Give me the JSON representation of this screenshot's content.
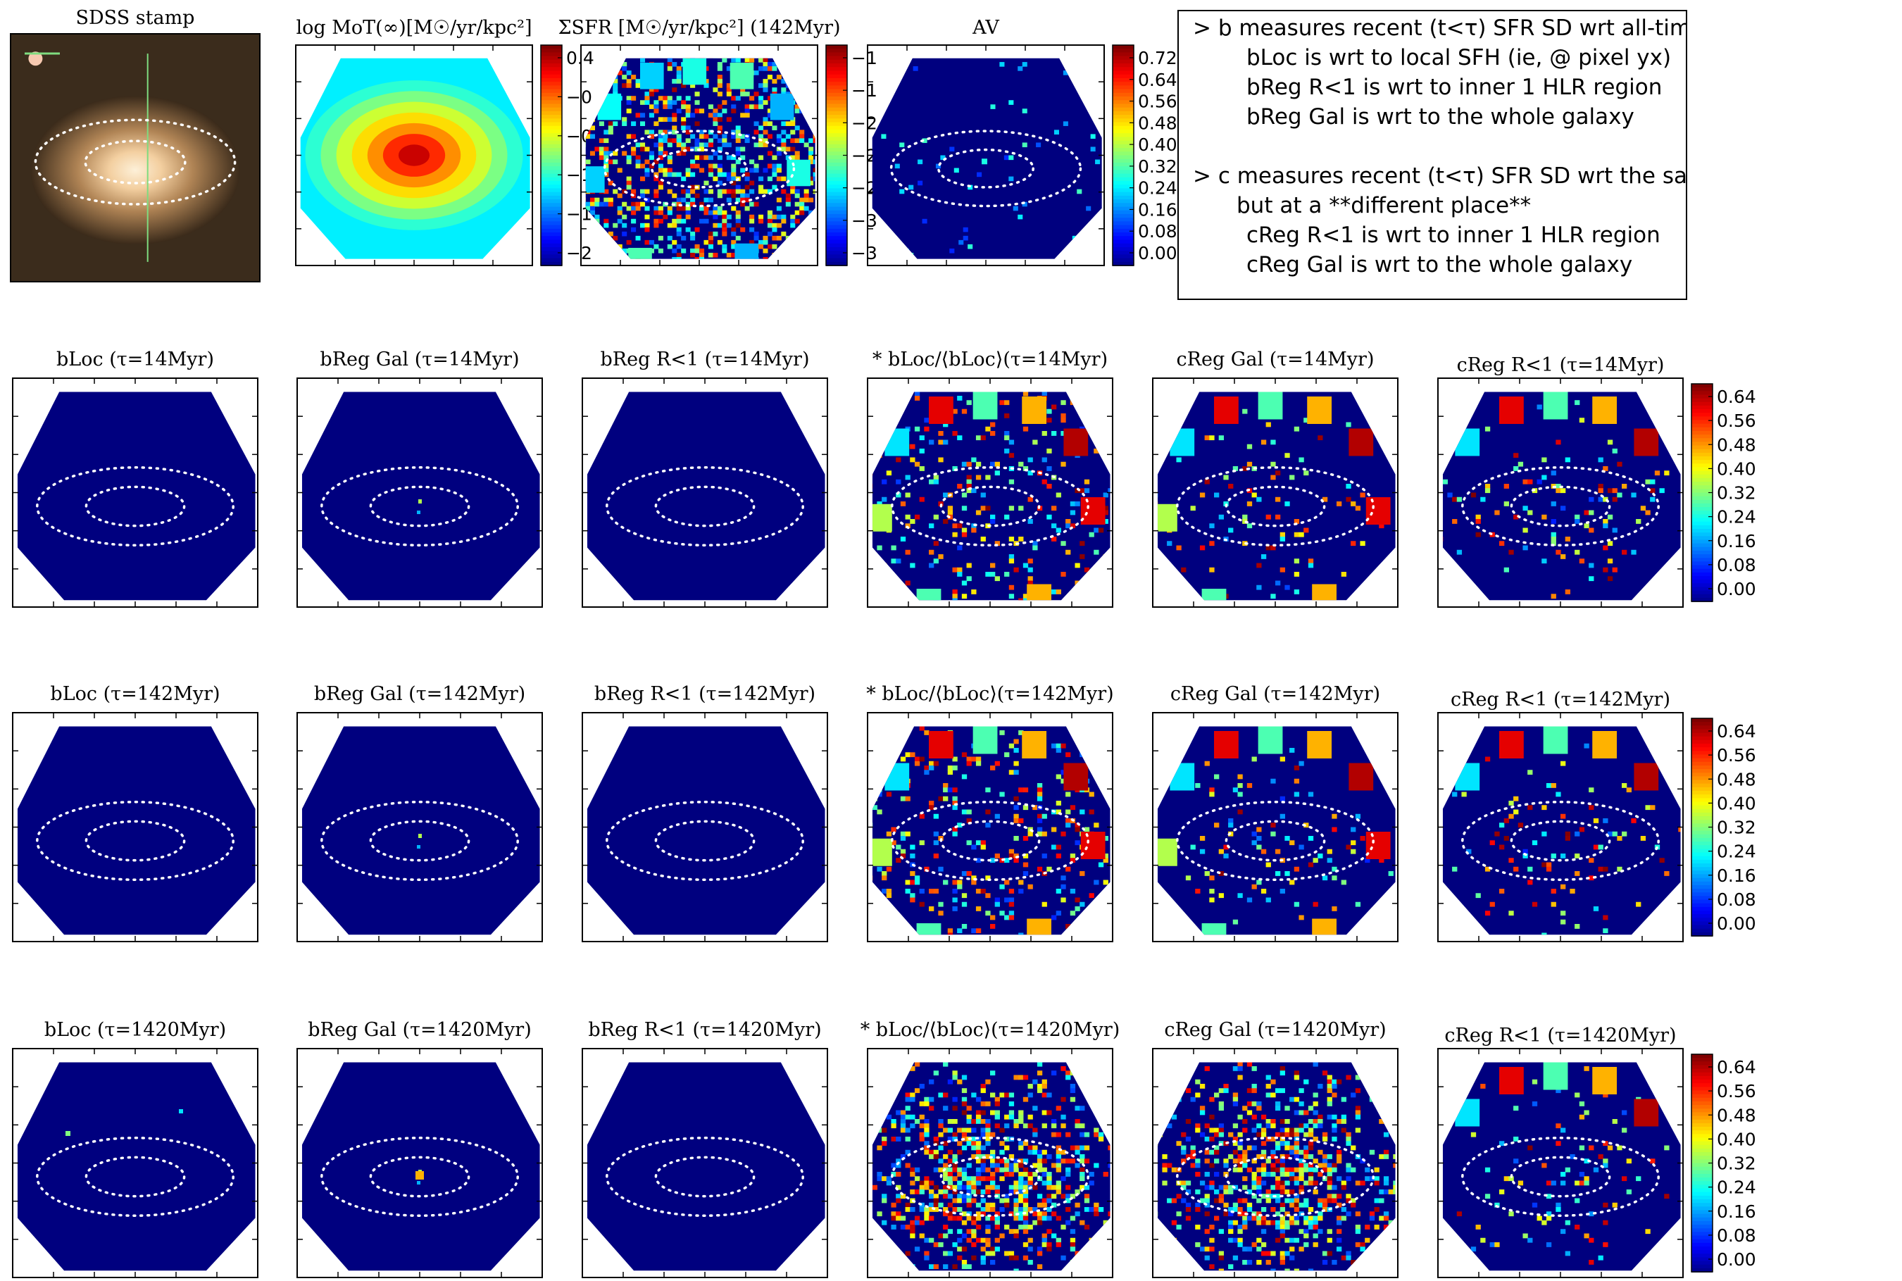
{
  "colors": {
    "jet": [
      "#00007f",
      "#0000ff",
      "#007fff",
      "#00ffff",
      "#7fff7f",
      "#ffff00",
      "#ff7f00",
      "#ff0000",
      "#7f0000"
    ],
    "frame": "#000000",
    "ellipse": "#ffffff"
  },
  "note": {
    "lines": [
      "> b measures recent (t<τ) SFR SD wrt all-times SFR SD",
      "bLoc is wrt to local SFH (ie, @ pixel yx)",
      "bReg R<1 is wrt to inner 1 HLR region",
      "bReg Gal is wrt to the whole galaxy",
      "> c measures recent (t<τ) SFR SD wrt the same recent SFR SD",
      "but at a **different place**",
      "cReg R<1 is wrt to inner 1 HLR region",
      "cReg Gal is wrt to the whole galaxy"
    ]
  },
  "chart_data": [
    {
      "id": "sdss",
      "type": "image",
      "title": "SDSS stamp"
    },
    {
      "id": "mot",
      "type": "heatmap",
      "title": "log MoT(∞)[M☉/yr/kpc²]",
      "colorbar": {
        "ticks": [
          "0.4",
          "−0",
          "−0",
          "−1",
          "−1",
          "−2"
        ]
      }
    },
    {
      "id": "sfr",
      "type": "heatmap",
      "title": "ΣSFR [M☉/yr/kpc²] (142Myr)",
      "colorbar": {
        "ticks": [
          "−1",
          "−1",
          "−2",
          "−2",
          "−2",
          "−3",
          "−3"
        ]
      }
    },
    {
      "id": "av",
      "type": "heatmap",
      "title": "AV",
      "colorbar": {
        "ticks": [
          "0.72",
          "0.64",
          "0.56",
          "0.48",
          "0.40",
          "0.32",
          "0.24",
          "0.16",
          "0.08",
          "0.00"
        ]
      }
    },
    {
      "id": "r1_bloc",
      "type": "heatmap",
      "title": "bLoc (τ=14Myr)"
    },
    {
      "id": "r1_bregal",
      "type": "heatmap",
      "title": "bReg Gal (τ=14Myr)"
    },
    {
      "id": "r1_breg1",
      "type": "heatmap",
      "title": "bReg R<1 (τ=14Myr)"
    },
    {
      "id": "r1_bratio",
      "type": "heatmap",
      "title": "* bLoc/⟨bLoc⟩(τ=14Myr)"
    },
    {
      "id": "r1_cregal",
      "type": "heatmap",
      "title": "cReg Gal (τ=14Myr)"
    },
    {
      "id": "r1_creg1",
      "type": "heatmap",
      "title": "cReg R<1 (τ=14Myr)",
      "colorbar": {
        "ticks": [
          "0.64",
          "0.56",
          "0.48",
          "0.40",
          "0.32",
          "0.24",
          "0.16",
          "0.08",
          "0.00"
        ]
      }
    },
    {
      "id": "r2_bloc",
      "type": "heatmap",
      "title": "bLoc (τ=142Myr)"
    },
    {
      "id": "r2_bregal",
      "type": "heatmap",
      "title": "bReg Gal (τ=142Myr)"
    },
    {
      "id": "r2_breg1",
      "type": "heatmap",
      "title": "bReg R<1 (τ=142Myr)"
    },
    {
      "id": "r2_bratio",
      "type": "heatmap",
      "title": "* bLoc/⟨bLoc⟩(τ=142Myr)"
    },
    {
      "id": "r2_cregal",
      "type": "heatmap",
      "title": "cReg Gal (τ=142Myr)"
    },
    {
      "id": "r2_creg1",
      "type": "heatmap",
      "title": "cReg R<1 (τ=142Myr)",
      "colorbar": {
        "ticks": [
          "0.64",
          "0.56",
          "0.48",
          "0.40",
          "0.32",
          "0.24",
          "0.16",
          "0.08",
          "0.00"
        ]
      }
    },
    {
      "id": "r3_bloc",
      "type": "heatmap",
      "title": "bLoc (τ=1420Myr)"
    },
    {
      "id": "r3_bregal",
      "type": "heatmap",
      "title": "bReg Gal (τ=1420Myr)"
    },
    {
      "id": "r3_breg1",
      "type": "heatmap",
      "title": "bReg R<1 (τ=1420Myr)"
    },
    {
      "id": "r3_bratio",
      "type": "heatmap",
      "title": "* bLoc/⟨bLoc⟩(τ=1420Myr)"
    },
    {
      "id": "r3_cregal",
      "type": "heatmap",
      "title": "cReg Gal (τ=1420Myr)"
    },
    {
      "id": "r3_creg1",
      "type": "heatmap",
      "title": "cReg R<1 (τ=1420Myr)",
      "colorbar": {
        "ticks": [
          "0.64",
          "0.56",
          "0.48",
          "0.40",
          "0.32",
          "0.24",
          "0.16",
          "0.08",
          "0.00"
        ]
      }
    }
  ]
}
